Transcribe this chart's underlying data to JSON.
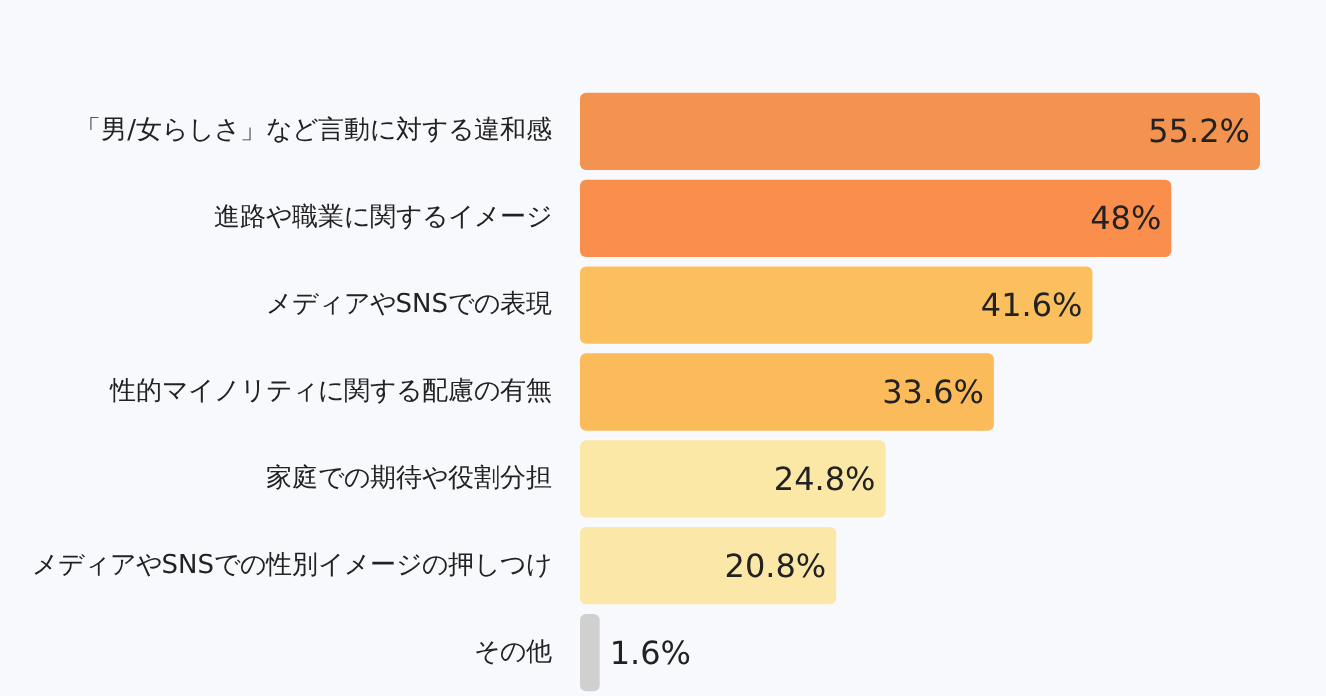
{
  "chart_data": {
    "type": "bar",
    "orientation": "horizontal",
    "value_labels": [
      "55.2%",
      "48%",
      "41.6%",
      "33.6%",
      "24.8%",
      "20.8%",
      "1.6%"
    ],
    "categories": [
      "「男/女らしさ」など言動に対する違和感",
      "進路や職業に関するイメージ",
      "メディアやSNSでの表現",
      "性的マイノリティに関する配慮の有無",
      "家庭での期待や役割分担",
      "メディアやSNSでの性別イメージの押しつけ",
      "その他"
    ],
    "values": [
      55.2,
      48,
      41.6,
      33.6,
      24.8,
      20.8,
      1.6
    ],
    "colors": [
      "#f4924f",
      "#fa8f4d",
      "#fbbf5e",
      "#fbbb5a",
      "#fbe8a6",
      "#fbe8a8",
      "#d0d0d0"
    ]
  }
}
